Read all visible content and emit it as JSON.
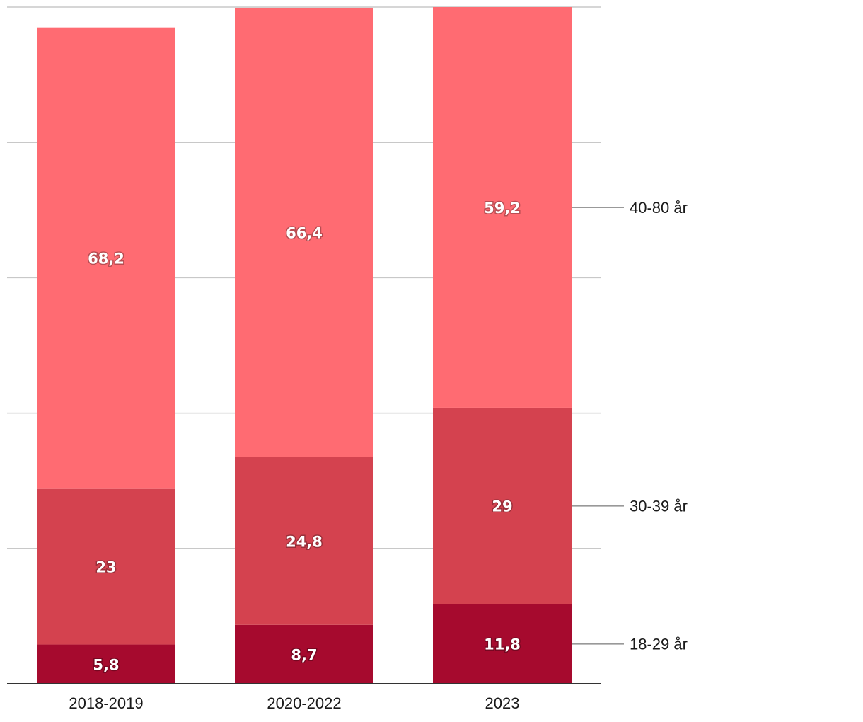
{
  "chart_data": {
    "type": "bar",
    "stacked": true,
    "categories": [
      "2018-2019",
      "2020-2022",
      "2023"
    ],
    "series": [
      {
        "name": "18-29 år",
        "values": [
          5.8,
          8.7,
          11.8
        ],
        "labels": [
          "5,8",
          "8,7",
          "11,8"
        ],
        "color": "#a60a2e"
      },
      {
        "name": "30-39 år",
        "values": [
          23,
          24.8,
          29
        ],
        "labels": [
          "23",
          "24,8",
          "29"
        ],
        "color": "#d4424f"
      },
      {
        "name": "40-80 år",
        "values": [
          68.2,
          66.4,
          59.2
        ],
        "labels": [
          "68,2",
          "66,4",
          "59,2"
        ],
        "color": "#ff6b72"
      }
    ],
    "ylim": [
      0,
      100
    ],
    "grid": true,
    "gridlines": [
      0,
      20,
      40,
      60,
      80,
      100
    ],
    "legend": "right-inline",
    "title": "",
    "xlabel": "",
    "ylabel": ""
  }
}
